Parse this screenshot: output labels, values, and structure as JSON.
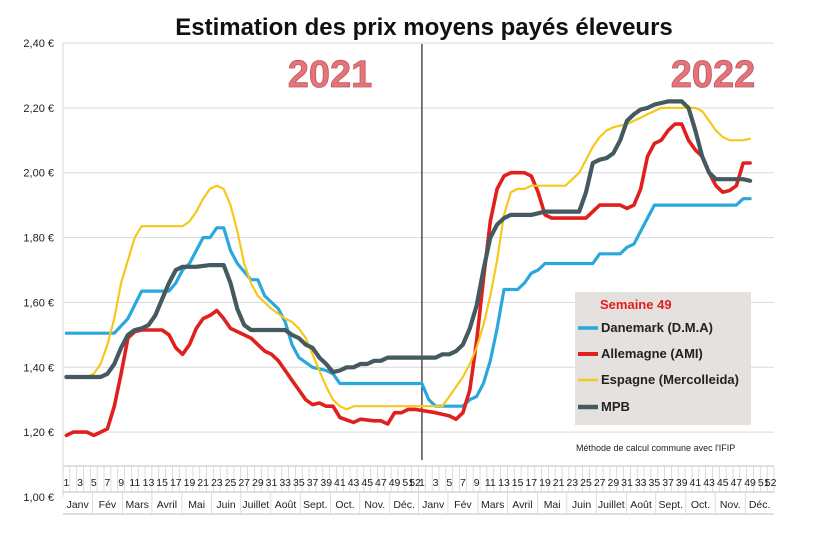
{
  "chart_data": {
    "type": "line",
    "title": "Estimation des prix moyens payés éleveurs",
    "year_labels": [
      "2021",
      "2022"
    ],
    "y_ticks": [
      "2,40 €",
      "2,20 €",
      "2,00 €",
      "1,80 €",
      "1,60 €",
      "1,40 €",
      "1,20 €",
      "1,00 €"
    ],
    "ylim": [
      1.0,
      2.4
    ],
    "grid": "horizontal",
    "x_week_labels": [
      "1",
      "3",
      "5",
      "7",
      "9",
      "11",
      "13",
      "15",
      "17",
      "19",
      "21",
      "23",
      "25",
      "27",
      "29",
      "31",
      "33",
      "35",
      "37",
      "39",
      "41",
      "43",
      "45",
      "47",
      "49",
      "51",
      "52",
      "1",
      "3",
      "5",
      "7",
      "9",
      "11",
      "13",
      "15",
      "17",
      "19",
      "21",
      "23",
      "25",
      "27",
      "29",
      "31",
      "33",
      "35",
      "37",
      "39",
      "41",
      "43",
      "45",
      "47",
      "49",
      "51",
      "52"
    ],
    "months": [
      "Janv",
      "Fév",
      "Mars",
      "Avril",
      "Mai",
      "Juin",
      "Juillet",
      "Août",
      "Sept.",
      "Oct.",
      "Nov.",
      "Déc.",
      "Janv",
      "Fév",
      "Mars",
      "Avril",
      "Mai",
      "Juin",
      "Juillet",
      "Août",
      "Sept.",
      "Oct.",
      "Nov.",
      "Déc."
    ],
    "legend_title": "Semaine 49",
    "legend_position": "right",
    "note": "Méthode de calcul commune avec l'IFIP",
    "series": [
      {
        "name": "Danemark (D.M.A)",
        "color": "#2aa8de",
        "points": [
          [
            1,
            1.505
          ],
          [
            8,
            1.505
          ],
          [
            10,
            1.55
          ],
          [
            12,
            1.635
          ],
          [
            16,
            1.635
          ],
          [
            17,
            1.66
          ],
          [
            18,
            1.7
          ],
          [
            19,
            1.72
          ],
          [
            21,
            1.8
          ],
          [
            22,
            1.8
          ],
          [
            23,
            1.83
          ],
          [
            24,
            1.83
          ],
          [
            25,
            1.76
          ],
          [
            26,
            1.72
          ],
          [
            28,
            1.67
          ],
          [
            29,
            1.67
          ],
          [
            30,
            1.62
          ],
          [
            32,
            1.58
          ],
          [
            33,
            1.54
          ],
          [
            34,
            1.47
          ],
          [
            35,
            1.43
          ],
          [
            37,
            1.4
          ],
          [
            39,
            1.39
          ],
          [
            40,
            1.38
          ],
          [
            41,
            1.35
          ],
          [
            51,
            1.35
          ],
          [
            52,
            1.35
          ],
          [
            53,
            1.35
          ],
          [
            54,
            1.3
          ],
          [
            55,
            1.28
          ],
          [
            59,
            1.28
          ],
          [
            60,
            1.3
          ],
          [
            61,
            1.31
          ],
          [
            62,
            1.35
          ],
          [
            63,
            1.42
          ],
          [
            64,
            1.52
          ],
          [
            65,
            1.64
          ],
          [
            67,
            1.64
          ],
          [
            68,
            1.66
          ],
          [
            69,
            1.69
          ],
          [
            70,
            1.7
          ],
          [
            71,
            1.72
          ],
          [
            78,
            1.72
          ],
          [
            79,
            1.75
          ],
          [
            82,
            1.75
          ],
          [
            83,
            1.77
          ],
          [
            84,
            1.78
          ],
          [
            85,
            1.82
          ],
          [
            86,
            1.86
          ],
          [
            87,
            1.9
          ],
          [
            99,
            1.9
          ],
          [
            100,
            1.92
          ],
          [
            101,
            1.92
          ]
        ]
      },
      {
        "name": "Allemagne (AMI)",
        "color": "#e0201e",
        "points": [
          [
            1,
            1.19
          ],
          [
            2,
            1.2
          ],
          [
            4,
            1.2
          ],
          [
            5,
            1.19
          ],
          [
            6,
            1.2
          ],
          [
            7,
            1.21
          ],
          [
            8,
            1.28
          ],
          [
            9,
            1.38
          ],
          [
            10,
            1.49
          ],
          [
            11,
            1.51
          ],
          [
            12,
            1.515
          ],
          [
            15,
            1.515
          ],
          [
            16,
            1.5
          ],
          [
            17,
            1.46
          ],
          [
            18,
            1.44
          ],
          [
            19,
            1.47
          ],
          [
            20,
            1.52
          ],
          [
            21,
            1.55
          ],
          [
            22,
            1.56
          ],
          [
            23,
            1.575
          ],
          [
            24,
            1.55
          ],
          [
            25,
            1.52
          ],
          [
            27,
            1.5
          ],
          [
            28,
            1.49
          ],
          [
            29,
            1.47
          ],
          [
            30,
            1.45
          ],
          [
            31,
            1.44
          ],
          [
            32,
            1.42
          ],
          [
            33,
            1.39
          ],
          [
            34,
            1.36
          ],
          [
            35,
            1.33
          ],
          [
            36,
            1.3
          ],
          [
            37,
            1.285
          ],
          [
            38,
            1.29
          ],
          [
            39,
            1.28
          ],
          [
            40,
            1.28
          ],
          [
            41,
            1.245
          ],
          [
            43,
            1.23
          ],
          [
            44,
            1.24
          ],
          [
            46,
            1.235
          ],
          [
            47,
            1.235
          ],
          [
            48,
            1.225
          ],
          [
            49,
            1.26
          ],
          [
            50,
            1.26
          ],
          [
            51,
            1.27
          ],
          [
            52,
            1.27
          ],
          [
            55,
            1.26
          ],
          [
            57,
            1.25
          ],
          [
            58,
            1.24
          ],
          [
            59,
            1.26
          ],
          [
            60,
            1.33
          ],
          [
            61,
            1.48
          ],
          [
            62,
            1.67
          ],
          [
            63,
            1.85
          ],
          [
            64,
            1.95
          ],
          [
            65,
            1.99
          ],
          [
            66,
            2.0
          ],
          [
            68,
            2.0
          ],
          [
            69,
            1.99
          ],
          [
            70,
            1.94
          ],
          [
            71,
            1.87
          ],
          [
            72,
            1.86
          ],
          [
            77,
            1.86
          ],
          [
            78,
            1.88
          ],
          [
            79,
            1.9
          ],
          [
            82,
            1.9
          ],
          [
            83,
            1.89
          ],
          [
            84,
            1.9
          ],
          [
            85,
            1.95
          ],
          [
            86,
            2.05
          ],
          [
            87,
            2.09
          ],
          [
            88,
            2.1
          ],
          [
            89,
            2.13
          ],
          [
            90,
            2.15
          ],
          [
            91,
            2.15
          ],
          [
            92,
            2.1
          ],
          [
            93,
            2.07
          ],
          [
            94,
            2.05
          ],
          [
            95,
            2.0
          ],
          [
            96,
            1.96
          ],
          [
            97,
            1.94
          ],
          [
            98,
            1.945
          ],
          [
            99,
            1.96
          ],
          [
            100,
            2.03
          ],
          [
            101,
            2.03
          ]
        ]
      },
      {
        "name": "Espagne (Mercolleida)",
        "color": "#f5c81b",
        "points": [
          [
            1,
            1.37
          ],
          [
            4,
            1.37
          ],
          [
            5,
            1.38
          ],
          [
            6,
            1.41
          ],
          [
            7,
            1.47
          ],
          [
            8,
            1.55
          ],
          [
            9,
            1.66
          ],
          [
            10,
            1.73
          ],
          [
            11,
            1.8
          ],
          [
            12,
            1.835
          ],
          [
            18,
            1.835
          ],
          [
            19,
            1.85
          ],
          [
            20,
            1.88
          ],
          [
            21,
            1.92
          ],
          [
            22,
            1.95
          ],
          [
            23,
            1.96
          ],
          [
            24,
            1.95
          ],
          [
            25,
            1.9
          ],
          [
            26,
            1.82
          ],
          [
            27,
            1.72
          ],
          [
            28,
            1.66
          ],
          [
            29,
            1.62
          ],
          [
            30,
            1.6
          ],
          [
            31,
            1.58
          ],
          [
            32,
            1.565
          ],
          [
            33,
            1.55
          ],
          [
            34,
            1.54
          ],
          [
            35,
            1.52
          ],
          [
            36,
            1.49
          ],
          [
            37,
            1.44
          ],
          [
            38,
            1.39
          ],
          [
            39,
            1.34
          ],
          [
            40,
            1.3
          ],
          [
            41,
            1.28
          ],
          [
            42,
            1.27
          ],
          [
            43,
            1.28
          ],
          [
            53,
            1.28
          ],
          [
            56,
            1.28
          ],
          [
            57,
            1.31
          ],
          [
            58,
            1.34
          ],
          [
            59,
            1.37
          ],
          [
            60,
            1.41
          ],
          [
            61,
            1.46
          ],
          [
            62,
            1.53
          ],
          [
            63,
            1.62
          ],
          [
            64,
            1.73
          ],
          [
            65,
            1.87
          ],
          [
            66,
            1.94
          ],
          [
            67,
            1.95
          ],
          [
            68,
            1.95
          ],
          [
            69,
            1.96
          ],
          [
            71,
            1.96
          ],
          [
            74,
            1.96
          ],
          [
            75,
            1.98
          ],
          [
            76,
            2.0
          ],
          [
            77,
            2.04
          ],
          [
            78,
            2.08
          ],
          [
            79,
            2.11
          ],
          [
            80,
            2.13
          ],
          [
            81,
            2.14
          ],
          [
            82,
            2.145
          ],
          [
            83,
            2.15
          ],
          [
            84,
            2.16
          ],
          [
            85,
            2.17
          ],
          [
            86,
            2.18
          ],
          [
            87,
            2.19
          ],
          [
            88,
            2.2
          ],
          [
            89,
            2.2
          ],
          [
            91,
            2.2
          ],
          [
            92,
            2.2
          ],
          [
            93,
            2.2
          ],
          [
            94,
            2.19
          ],
          [
            95,
            2.16
          ],
          [
            96,
            2.13
          ],
          [
            97,
            2.11
          ],
          [
            98,
            2.1
          ],
          [
            100,
            2.1
          ],
          [
            101,
            2.105
          ]
        ]
      },
      {
        "name": "MPB",
        "color": "#455a5f",
        "points": [
          [
            1,
            1.37
          ],
          [
            6,
            1.37
          ],
          [
            7,
            1.38
          ],
          [
            8,
            1.41
          ],
          [
            9,
            1.46
          ],
          [
            10,
            1.5
          ],
          [
            11,
            1.515
          ],
          [
            12,
            1.52
          ],
          [
            13,
            1.53
          ],
          [
            14,
            1.56
          ],
          [
            15,
            1.61
          ],
          [
            16,
            1.66
          ],
          [
            17,
            1.7
          ],
          [
            18,
            1.71
          ],
          [
            20,
            1.71
          ],
          [
            22,
            1.715
          ],
          [
            24,
            1.715
          ],
          [
            25,
            1.66
          ],
          [
            26,
            1.58
          ],
          [
            27,
            1.53
          ],
          [
            28,
            1.515
          ],
          [
            33,
            1.515
          ],
          [
            34,
            1.5
          ],
          [
            35,
            1.49
          ],
          [
            36,
            1.47
          ],
          [
            37,
            1.46
          ],
          [
            38,
            1.43
          ],
          [
            39,
            1.41
          ],
          [
            40,
            1.385
          ],
          [
            41,
            1.39
          ],
          [
            42,
            1.4
          ],
          [
            43,
            1.4
          ],
          [
            44,
            1.41
          ],
          [
            45,
            1.41
          ],
          [
            46,
            1.42
          ],
          [
            47,
            1.42
          ],
          [
            48,
            1.43
          ],
          [
            55,
            1.43
          ],
          [
            56,
            1.44
          ],
          [
            57,
            1.44
          ],
          [
            58,
            1.45
          ],
          [
            59,
            1.47
          ],
          [
            60,
            1.52
          ],
          [
            61,
            1.59
          ],
          [
            62,
            1.7
          ],
          [
            63,
            1.8
          ],
          [
            64,
            1.84
          ],
          [
            65,
            1.86
          ],
          [
            66,
            1.87
          ],
          [
            69,
            1.87
          ],
          [
            70,
            1.875
          ],
          [
            71,
            1.88
          ],
          [
            76,
            1.88
          ],
          [
            77,
            1.94
          ],
          [
            78,
            2.03
          ],
          [
            79,
            2.04
          ],
          [
            80,
            2.045
          ],
          [
            81,
            2.06
          ],
          [
            82,
            2.1
          ],
          [
            83,
            2.16
          ],
          [
            84,
            2.18
          ],
          [
            85,
            2.195
          ],
          [
            86,
            2.2
          ],
          [
            87,
            2.21
          ],
          [
            88,
            2.215
          ],
          [
            89,
            2.22
          ],
          [
            91,
            2.22
          ],
          [
            92,
            2.2
          ],
          [
            93,
            2.13
          ],
          [
            94,
            2.05
          ],
          [
            95,
            2.0
          ],
          [
            96,
            1.98
          ],
          [
            100,
            1.98
          ],
          [
            101,
            1.975
          ]
        ]
      }
    ]
  }
}
